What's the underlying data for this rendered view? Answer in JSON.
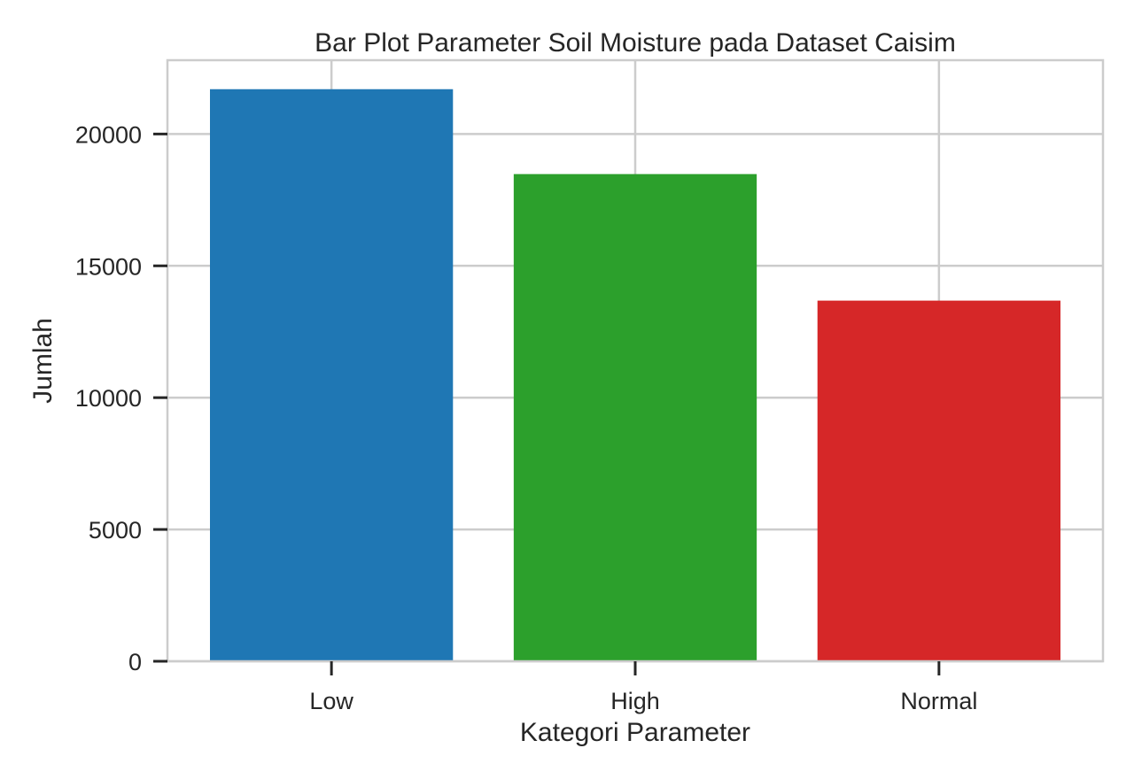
{
  "chart_data": {
    "type": "bar",
    "title": "Bar Plot Parameter Soil Moisture pada Dataset Caisim",
    "xlabel": "Kategori Parameter",
    "ylabel": "Jumlah",
    "categories": [
      "Low",
      "High",
      "Normal"
    ],
    "values": [
      21700,
      18480,
      13680
    ],
    "colors": [
      "#1f77b4",
      "#2ca02c",
      "#d62728"
    ],
    "ylim": [
      0,
      22800
    ],
    "yticks": [
      0,
      5000,
      10000,
      15000,
      20000
    ],
    "ytick_labels": [
      "0",
      "5000",
      "10000",
      "15000",
      "20000"
    ],
    "grid": true
  }
}
